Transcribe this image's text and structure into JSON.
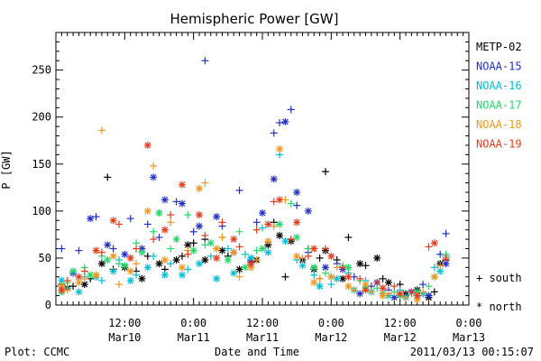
{
  "chart_data": {
    "type": "scatter",
    "title": "Hemispheric Power [GW]",
    "ylabel": "P [GW]",
    "xlabel": "Date and Time",
    "ylim": [
      0,
      290
    ],
    "yticks": [
      0,
      50,
      100,
      150,
      200,
      250
    ],
    "xlim_hours": [
      0,
      72
    ],
    "xticks": [
      {
        "h": 12,
        "time": "12:00",
        "date": "Mar10"
      },
      {
        "h": 24,
        "time": "0:00",
        "date": "Mar11"
      },
      {
        "h": 36,
        "time": "12:00",
        "date": "Mar11"
      },
      {
        "h": 48,
        "time": "0:00",
        "date": "Mar12"
      },
      {
        "h": 60,
        "time": "12:00",
        "date": "Mar12"
      },
      {
        "h": 72,
        "time": "0:00",
        "date": "Mar13"
      }
    ],
    "legend": {
      "placement": "right",
      "series_names": [
        "METP-02",
        "NOAA-15",
        "NOAA-16",
        "NOAA-17",
        "NOAA-18",
        "NOAA-19"
      ],
      "colors": [
        "#000000",
        "#1f2fc8",
        "#00bfd8",
        "#22d86a",
        "#f0961e",
        "#e83a1a"
      ],
      "markers": [
        {
          "symbol": "+",
          "label": "south"
        },
        {
          "symbol": "*",
          "label": "north"
        }
      ]
    },
    "series": [
      {
        "name": "METP-02",
        "color": "#000000",
        "south": [
          [
            1,
            22
          ],
          [
            3,
            20
          ],
          [
            6,
            28
          ],
          [
            9,
            136
          ],
          [
            10,
            38
          ],
          [
            14,
            36
          ],
          [
            16,
            52
          ],
          [
            19,
            38
          ],
          [
            22,
            52
          ],
          [
            24,
            66
          ],
          [
            26,
            70
          ],
          [
            30,
            52
          ],
          [
            34,
            46
          ],
          [
            38,
            88
          ],
          [
            40,
            30
          ],
          [
            44,
            60
          ],
          [
            46,
            50
          ],
          [
            47,
            142
          ],
          [
            49,
            48
          ],
          [
            51,
            72
          ],
          [
            54,
            42
          ],
          [
            57,
            28
          ],
          [
            60,
            22
          ],
          [
            64,
            12
          ],
          [
            66,
            14
          ],
          [
            68,
            48
          ]
        ],
        "north": [
          [
            2,
            18
          ],
          [
            5,
            22
          ],
          [
            8,
            44
          ],
          [
            12,
            40
          ],
          [
            15,
            28
          ],
          [
            18,
            44
          ],
          [
            21,
            48
          ],
          [
            23,
            64
          ],
          [
            26,
            48
          ],
          [
            29,
            58
          ],
          [
            32,
            38
          ],
          [
            35,
            48
          ],
          [
            37,
            64
          ],
          [
            39,
            74
          ],
          [
            41,
            68
          ],
          [
            43,
            48
          ],
          [
            45,
            38
          ],
          [
            47,
            58
          ],
          [
            50,
            28
          ],
          [
            53,
            44
          ],
          [
            56,
            50
          ],
          [
            58,
            24
          ],
          [
            61,
            12
          ],
          [
            63,
            16
          ],
          [
            65,
            8
          ],
          [
            67,
            44
          ]
        ]
      },
      {
        "name": "NOAA-15",
        "color": "#1f2fc8",
        "south": [
          [
            1,
            60
          ],
          [
            4,
            58
          ],
          [
            7,
            94
          ],
          [
            10,
            60
          ],
          [
            13,
            92
          ],
          [
            16,
            86
          ],
          [
            18,
            72
          ],
          [
            21,
            110
          ],
          [
            24,
            78
          ],
          [
            26,
            260
          ],
          [
            29,
            84
          ],
          [
            32,
            122
          ],
          [
            35,
            88
          ],
          [
            38,
            183
          ],
          [
            39,
            194
          ],
          [
            41,
            208
          ],
          [
            42,
            106
          ],
          [
            44,
            56
          ],
          [
            46,
            28
          ],
          [
            49,
            44
          ],
          [
            52,
            30
          ],
          [
            55,
            20
          ],
          [
            58,
            16
          ],
          [
            61,
            10
          ],
          [
            64,
            22
          ],
          [
            67,
            54
          ],
          [
            68,
            76
          ]
        ],
        "north": [
          [
            3,
            34
          ],
          [
            6,
            92
          ],
          [
            9,
            64
          ],
          [
            12,
            54
          ],
          [
            15,
            60
          ],
          [
            17,
            136
          ],
          [
            19,
            112
          ],
          [
            22,
            108
          ],
          [
            25,
            84
          ],
          [
            28,
            94
          ],
          [
            31,
            56
          ],
          [
            34,
            48
          ],
          [
            36,
            98
          ],
          [
            38,
            134
          ],
          [
            40,
            195
          ],
          [
            42,
            120
          ],
          [
            44,
            100
          ],
          [
            47,
            40
          ],
          [
            50,
            38
          ],
          [
            53,
            12
          ],
          [
            56,
            24
          ],
          [
            59,
            8
          ],
          [
            62,
            14
          ],
          [
            65,
            10
          ],
          [
            68,
            44
          ]
        ]
      },
      {
        "name": "NOAA-16",
        "color": "#00bfd8",
        "south": [
          [
            2,
            18
          ],
          [
            5,
            30
          ],
          [
            8,
            26
          ],
          [
            11,
            48
          ],
          [
            14,
            32
          ],
          [
            17,
            52
          ],
          [
            20,
            44
          ],
          [
            23,
            38
          ],
          [
            27,
            52
          ],
          [
            30,
            60
          ],
          [
            33,
            54
          ],
          [
            36,
            82
          ],
          [
            39,
            160
          ],
          [
            42,
            48
          ],
          [
            45,
            32
          ],
          [
            48,
            22
          ],
          [
            51,
            34
          ],
          [
            54,
            26
          ],
          [
            57,
            12
          ],
          [
            60,
            16
          ],
          [
            63,
            10
          ],
          [
            66,
            40
          ],
          [
            68,
            52
          ]
        ],
        "north": [
          [
            1,
            26
          ],
          [
            4,
            14
          ],
          [
            7,
            30
          ],
          [
            10,
            36
          ],
          [
            13,
            26
          ],
          [
            16,
            40
          ],
          [
            19,
            32
          ],
          [
            22,
            32
          ],
          [
            25,
            44
          ],
          [
            28,
            28
          ],
          [
            31,
            34
          ],
          [
            34,
            50
          ],
          [
            37,
            56
          ],
          [
            40,
            68
          ],
          [
            43,
            42
          ],
          [
            46,
            20
          ],
          [
            49,
            28
          ],
          [
            52,
            16
          ],
          [
            55,
            14
          ],
          [
            58,
            10
          ],
          [
            61,
            8
          ],
          [
            64,
            12
          ],
          [
            67,
            36
          ]
        ]
      },
      {
        "name": "NOAA-17",
        "color": "#22d86a",
        "south": [
          [
            2,
            24
          ],
          [
            5,
            40
          ],
          [
            8,
            52
          ],
          [
            11,
            44
          ],
          [
            14,
            66
          ],
          [
            17,
            78
          ],
          [
            20,
            60
          ],
          [
            23,
            96
          ],
          [
            26,
            64
          ],
          [
            29,
            72
          ],
          [
            32,
            78
          ],
          [
            35,
            58
          ],
          [
            38,
            84
          ],
          [
            41,
            108
          ],
          [
            44,
            60
          ],
          [
            47,
            34
          ],
          [
            50,
            42
          ],
          [
            53,
            26
          ],
          [
            56,
            18
          ],
          [
            59,
            14
          ],
          [
            62,
            12
          ],
          [
            65,
            20
          ],
          [
            68,
            54
          ]
        ],
        "north": [
          [
            1,
            14
          ],
          [
            3,
            36
          ],
          [
            6,
            32
          ],
          [
            9,
            48
          ],
          [
            12,
            42
          ],
          [
            15,
            56
          ],
          [
            18,
            98
          ],
          [
            21,
            70
          ],
          [
            24,
            58
          ],
          [
            27,
            66
          ],
          [
            30,
            48
          ],
          [
            33,
            40
          ],
          [
            36,
            60
          ],
          [
            39,
            86
          ],
          [
            42,
            72
          ],
          [
            45,
            40
          ],
          [
            48,
            30
          ],
          [
            51,
            40
          ],
          [
            54,
            18
          ],
          [
            57,
            12
          ],
          [
            60,
            10
          ],
          [
            63,
            14
          ],
          [
            66,
            30
          ]
        ]
      },
      {
        "name": "NOAA-18",
        "color": "#f0961e",
        "south": [
          [
            2,
            16
          ],
          [
            5,
            28
          ],
          [
            8,
            186
          ],
          [
            11,
            22
          ],
          [
            14,
            44
          ],
          [
            17,
            148
          ],
          [
            20,
            88
          ],
          [
            23,
            58
          ],
          [
            26,
            130
          ],
          [
            29,
            72
          ],
          [
            32,
            30
          ],
          [
            35,
            48
          ],
          [
            38,
            84
          ],
          [
            40,
            112
          ],
          [
            43,
            50
          ],
          [
            46,
            28
          ],
          [
            49,
            40
          ],
          [
            52,
            16
          ],
          [
            55,
            14
          ],
          [
            58,
            12
          ],
          [
            61,
            8
          ],
          [
            64,
            14
          ],
          [
            67,
            42
          ]
        ],
        "north": [
          [
            1,
            20
          ],
          [
            4,
            24
          ],
          [
            7,
            32
          ],
          [
            10,
            52
          ],
          [
            13,
            36
          ],
          [
            16,
            100
          ],
          [
            19,
            48
          ],
          [
            22,
            40
          ],
          [
            25,
            124
          ],
          [
            28,
            60
          ],
          [
            31,
            56
          ],
          [
            34,
            40
          ],
          [
            37,
            68
          ],
          [
            39,
            166
          ],
          [
            42,
            52
          ],
          [
            45,
            24
          ],
          [
            48,
            30
          ],
          [
            51,
            20
          ],
          [
            54,
            22
          ],
          [
            57,
            10
          ],
          [
            60,
            12
          ],
          [
            63,
            6
          ],
          [
            66,
            30
          ]
        ]
      },
      {
        "name": "NOAA-19",
        "color": "#e83a1a",
        "south": [
          [
            2,
            26
          ],
          [
            5,
            36
          ],
          [
            8,
            56
          ],
          [
            11,
            86
          ],
          [
            14,
            60
          ],
          [
            17,
            70
          ],
          [
            20,
            96
          ],
          [
            23,
            54
          ],
          [
            26,
            74
          ],
          [
            29,
            88
          ],
          [
            32,
            62
          ],
          [
            35,
            80
          ],
          [
            38,
            110
          ],
          [
            41,
            70
          ],
          [
            44,
            52
          ],
          [
            47,
            60
          ],
          [
            50,
            40
          ],
          [
            53,
            28
          ],
          [
            56,
            24
          ],
          [
            59,
            20
          ],
          [
            62,
            14
          ],
          [
            65,
            62
          ],
          [
            68,
            50
          ]
        ],
        "north": [
          [
            1,
            16
          ],
          [
            4,
            30
          ],
          [
            7,
            58
          ],
          [
            10,
            90
          ],
          [
            13,
            50
          ],
          [
            16,
            170
          ],
          [
            19,
            80
          ],
          [
            22,
            128
          ],
          [
            25,
            96
          ],
          [
            28,
            50
          ],
          [
            31,
            70
          ],
          [
            34,
            44
          ],
          [
            37,
            86
          ],
          [
            39,
            112
          ],
          [
            42,
            88
          ],
          [
            45,
            60
          ],
          [
            48,
            52
          ],
          [
            51,
            30
          ],
          [
            54,
            16
          ],
          [
            57,
            18
          ],
          [
            60,
            12
          ],
          [
            63,
            10
          ],
          [
            66,
            66
          ]
        ]
      }
    ]
  },
  "footer": {
    "left": "Plot: CCMC",
    "center": "Date and Time",
    "right": "2011/03/13 00:15:07"
  }
}
